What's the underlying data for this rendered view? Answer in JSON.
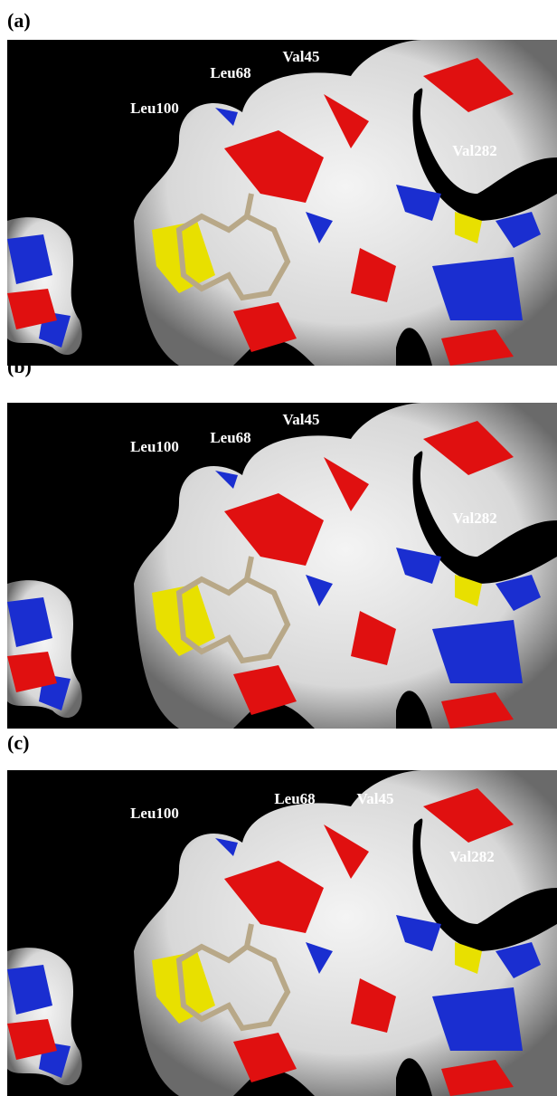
{
  "panels": [
    {
      "label": "(a)",
      "residues": [
        "Leu100",
        "Leu68",
        "Val45",
        "Val282"
      ]
    },
    {
      "label": "(b)",
      "residues": [
        "Leu100",
        "Leu68",
        "Val45",
        "Val282"
      ]
    },
    {
      "label": "(c)",
      "residues": [
        "Leu100",
        "Leu68",
        "Val45",
        "Val282"
      ]
    }
  ]
}
